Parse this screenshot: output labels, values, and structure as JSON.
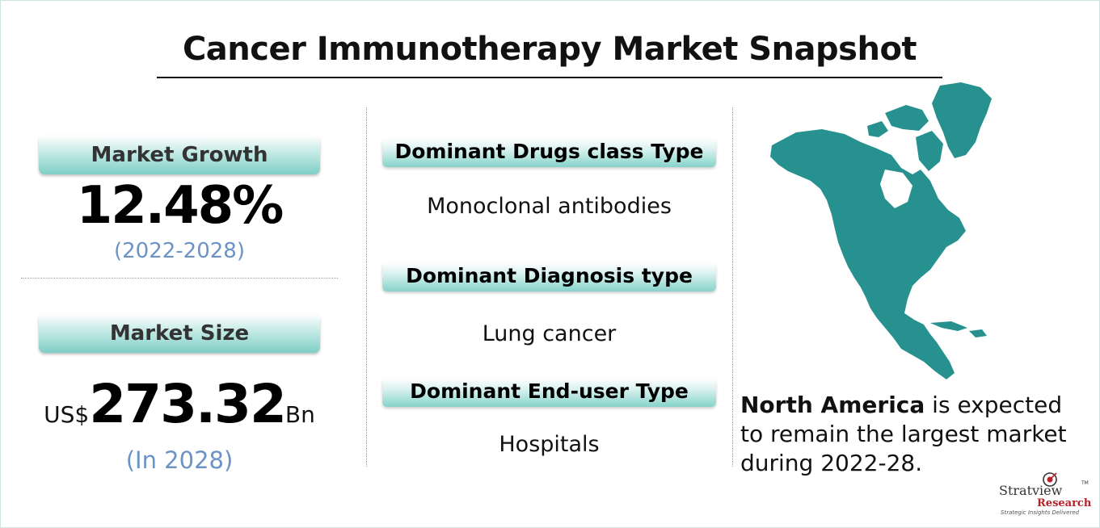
{
  "title": "Cancer Immunotherapy Market Snapshot",
  "left": {
    "growth_label": "Market Growth",
    "growth_value": "12.48%",
    "growth_period": "(2022-2028)",
    "size_label": "Market Size",
    "size_currency": "US$",
    "size_value": "273.32",
    "size_unit": "Bn",
    "size_year": "(In 2028)"
  },
  "middle": {
    "items": [
      {
        "label": "Dominant Drugs class Type",
        "value": "Monoclonal antibodies"
      },
      {
        "label": "Dominant Diagnosis type",
        "value": "Lung cancer"
      },
      {
        "label": "Dominant  End-user Type",
        "value": "Hospitals"
      }
    ]
  },
  "right": {
    "region": "North America",
    "statement": " is expected to remain the largest market during 2022-28.",
    "map_color": "#26918f"
  },
  "logo": {
    "line1": "Stratview",
    "line2": "Research",
    "tagline": "Strategic Insights Delivered",
    "tm": "TM"
  }
}
